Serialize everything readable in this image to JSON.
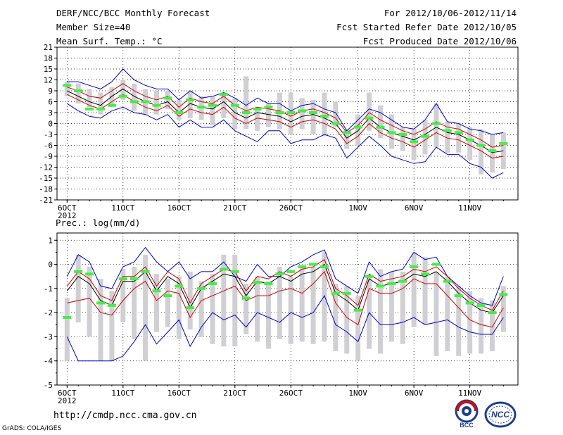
{
  "header": {
    "line1": "DERF/NCC/BCC Monthly Forecast",
    "line2": "Member Size=40",
    "line3": "Mean Surf. Temp.: °C",
    "right1": "For 2012/10/06-2012/11/14",
    "right2": "Fcst Started Refer Date 2012/10/05",
    "right3": "Fcst Produced Date 2012/10/06"
  },
  "footer": {
    "url": "http://cmdp.ncc.cma.gov.cn",
    "grads": "GrADS: COLA/IGES",
    "logo_bcc_text": "BCC",
    "logo_ncc_text": "NCC"
  },
  "colors": {
    "mean": "#000000",
    "spread": "#cc0000",
    "envelope": "#0000cc",
    "box": "#d0d0d4",
    "obs": "#44ee44",
    "grid": "#000000"
  },
  "chart_data": [
    {
      "type": "ensemble_timeseries",
      "title": "Mean Surf. Temp.: °C",
      "xlabel": "",
      "ylabel": "",
      "ylim": [
        -21,
        21
      ],
      "yticks": [
        "21",
        "18",
        "15",
        "12",
        "9",
        "6",
        "3",
        "0",
        "-3",
        "-6",
        "-9",
        "-12",
        "-15",
        "-18",
        "-21"
      ],
      "xticks": [
        {
          "day": 1,
          "label": "6OCT",
          "sub": "2012"
        },
        {
          "day": 6,
          "label": "11OCT"
        },
        {
          "day": 11,
          "label": "16OCT"
        },
        {
          "day": 16,
          "label": "21OCT"
        },
        {
          "day": 21,
          "label": "26OCT"
        },
        {
          "day": 27,
          "label": "1NOV"
        },
        {
          "day": 32,
          "label": "6NOV"
        },
        {
          "day": 37,
          "label": "11NOV"
        }
      ],
      "days": [
        1,
        2,
        3,
        4,
        5,
        6,
        7,
        8,
        9,
        10,
        11,
        12,
        13,
        14,
        15,
        16,
        17,
        18,
        19,
        20,
        21,
        22,
        23,
        24,
        25,
        26,
        27,
        28,
        29,
        30,
        31,
        32,
        33,
        34,
        35,
        36,
        37,
        38,
        39,
        40
      ],
      "mean": [
        9,
        7.5,
        6,
        5,
        7.5,
        9.5,
        7.5,
        6,
        5,
        6,
        3,
        5.5,
        4.5,
        4,
        6,
        3,
        1.5,
        3,
        2.5,
        2,
        0.5,
        2,
        2.5,
        1.5,
        0,
        -4,
        -2,
        1.5,
        -1,
        -2.5,
        -3.5,
        -4.5,
        -3,
        -1,
        -2.5,
        -3,
        -4.5,
        -6,
        -8,
        -7.5
      ],
      "upper": [
        10,
        9,
        7.5,
        7,
        9,
        11,
        9,
        7.5,
        6.5,
        7.5,
        4.5,
        7,
        6,
        5.5,
        7.5,
        5,
        3.5,
        4.5,
        4,
        3.5,
        2,
        3.5,
        4,
        3,
        1.5,
        -2.5,
        -0.5,
        3,
        1,
        -0.5,
        -2,
        -3,
        -1.5,
        0.5,
        -1,
        -1.5,
        -3,
        -4.5,
        -6.5,
        -6
      ],
      "lower": [
        8,
        6.5,
        5,
        4,
        6,
        8,
        6,
        4.5,
        3.5,
        5,
        2,
        4,
        3,
        2.5,
        4.5,
        1.5,
        0,
        1.5,
        1,
        0.5,
        -1,
        0.5,
        1,
        0,
        -1.5,
        -5.5,
        -3.5,
        0,
        -2.5,
        -4,
        -5,
        -6.5,
        -4.5,
        -2.5,
        -4,
        -4.5,
        -6,
        -7.5,
        -9.5,
        -9
      ],
      "max": [
        11.5,
        11.5,
        10.5,
        9.5,
        11.5,
        15,
        12,
        10.5,
        9.5,
        9.5,
        6.5,
        9,
        7,
        7.5,
        8.5,
        7,
        5,
        7,
        5.5,
        5.5,
        3.5,
        5,
        5.5,
        4,
        3,
        -2,
        1,
        4,
        3,
        1,
        -1,
        -1.5,
        1,
        5.5,
        0.5,
        0,
        -1.5,
        -2,
        -3,
        -2.5
      ],
      "min": [
        5.5,
        3.5,
        2,
        1.5,
        3.5,
        4.5,
        3,
        2.5,
        1,
        2.5,
        -1,
        1,
        -1,
        -1,
        1,
        -2,
        -3.5,
        -5,
        -2,
        -2,
        -5.5,
        -4.5,
        -4.5,
        -3,
        -4,
        -9.5,
        -6.5,
        -3.5,
        -6,
        -9,
        -10,
        -11,
        -10.5,
        -6.5,
        -8.5,
        -8.5,
        -11,
        -12,
        -15,
        -13.5
      ],
      "box_high": [
        11.5,
        11,
        9.5,
        8.5,
        10,
        12,
        11,
        9.5,
        9,
        9,
        6.5,
        9,
        7.5,
        7.5,
        8.5,
        7,
        13,
        4.5,
        5.5,
        8.5,
        8.5,
        7,
        6.5,
        8.5,
        6,
        -1.5,
        2.5,
        8.5,
        5,
        2.5,
        -1,
        -1.5,
        1,
        5.5,
        0.5,
        0,
        -1,
        -1.5,
        -3,
        -2.5
      ],
      "box_low": [
        7.5,
        5.5,
        4.5,
        2.5,
        4.5,
        6.5,
        3.5,
        2.5,
        2.5,
        4,
        1,
        1.5,
        1,
        -0.5,
        1.5,
        -1.5,
        -1.5,
        -2,
        -1,
        -1.5,
        -3,
        -1.5,
        -3,
        -3.5,
        -1,
        -7,
        -6,
        -2,
        -4,
        -7,
        -7.5,
        -10,
        -8.5,
        -6.5,
        -8,
        -8,
        -10,
        -14,
        -13.5,
        -12.5
      ],
      "obs": [
        10.5,
        9,
        4,
        4,
        5,
        7.5,
        6,
        6,
        5,
        7,
        3,
        6.5,
        4.5,
        5,
        8,
        5,
        3,
        4,
        4.5,
        3,
        3,
        3.5,
        3,
        2,
        0,
        -2.5,
        -1,
        1.5,
        -1,
        -2.5,
        -3,
        -5,
        -3.5,
        0,
        -2,
        -2.5,
        -4.5,
        -6,
        -7.5,
        -5.5
      ]
    },
    {
      "type": "ensemble_timeseries",
      "title": "Prec.: log(mm/d)",
      "xlabel": "",
      "ylabel": "",
      "ylim": [
        -5,
        1.3
      ],
      "yticks": [
        "1",
        "0",
        "-1",
        "-2",
        "-3",
        "-4",
        "-5"
      ],
      "xticks": [
        {
          "day": 1,
          "label": "6OCT",
          "sub": "2012"
        },
        {
          "day": 6,
          "label": "11OCT"
        },
        {
          "day": 11,
          "label": "16OCT"
        },
        {
          "day": 16,
          "label": "21OCT"
        },
        {
          "day": 21,
          "label": "26OCT"
        },
        {
          "day": 27,
          "label": "1NOV"
        },
        {
          "day": 32,
          "label": "6NOV"
        },
        {
          "day": 37,
          "label": "11NOV"
        }
      ],
      "days": [
        1,
        2,
        3,
        4,
        5,
        6,
        7,
        8,
        9,
        10,
        11,
        12,
        13,
        14,
        15,
        16,
        17,
        18,
        19,
        20,
        21,
        22,
        23,
        24,
        25,
        26,
        27,
        28,
        29,
        30,
        31,
        32,
        33,
        34,
        35,
        36,
        37,
        38,
        39,
        40
      ],
      "mean": [
        -1.1,
        -0.5,
        -0.8,
        -1.5,
        -1.7,
        -0.7,
        -0.7,
        -0.3,
        -1.1,
        -0.5,
        -0.8,
        -1.8,
        -1,
        -0.7,
        -0.4,
        -0.5,
        -1.3,
        -0.7,
        -0.8,
        -0.5,
        -0.7,
        -0.4,
        -0.3,
        0,
        -1.2,
        -1.5,
        -1.9,
        -0.6,
        -0.9,
        -0.8,
        -0.7,
        -0.4,
        -0.5,
        -0.3,
        -0.7,
        -1.2,
        -1.6,
        -1.9,
        -2,
        -1.3
      ],
      "upper": [
        -0.9,
        -0.3,
        -0.6,
        -1.3,
        -1.5,
        -0.5,
        -0.5,
        -0.1,
        -0.9,
        -0.3,
        -0.6,
        -1.6,
        -0.8,
        -0.5,
        -0.2,
        -0.3,
        -1.1,
        -0.5,
        -0.6,
        -0.3,
        -0.5,
        -0.2,
        -0.1,
        0.2,
        -1,
        -1.3,
        -1.7,
        -0.4,
        -0.7,
        -0.6,
        -0.5,
        -0.2,
        -0.3,
        -0.1,
        -0.5,
        -1,
        -1.4,
        -1.7,
        -1.9,
        -1.1
      ],
      "lower": [
        -1.6,
        -1.5,
        -1.4,
        -2,
        -2.1,
        -1.5,
        -1,
        -0.7,
        -1.5,
        -1.1,
        -1.2,
        -2.2,
        -1.5,
        -1.3,
        -1.1,
        -0.9,
        -1.5,
        -1.3,
        -1.3,
        -1.1,
        -1,
        -1.2,
        -0.8,
        -0.3,
        -1.6,
        -2.2,
        -2.5,
        -1,
        -1.2,
        -1.2,
        -1,
        -0.6,
        -0.8,
        -0.8,
        -1.3,
        -1.8,
        -2.3,
        -2.5,
        -2.6,
        -1.8
      ],
      "max": [
        -0.5,
        0.4,
        0.1,
        -0.9,
        -1,
        -0.1,
        0.1,
        0.7,
        0.1,
        -0.3,
        0.1,
        -0.6,
        -0.3,
        -0.3,
        0.1,
        -0.5,
        -0.7,
        0,
        -0.5,
        -0.5,
        -0.1,
        0.1,
        0.4,
        0.6,
        -0.6,
        -0.9,
        -1.2,
        0.1,
        -0.5,
        -0.3,
        -0.2,
        0.5,
        0.2,
        0.3,
        -0.5,
        -0.9,
        -1.3,
        -1.6,
        -1.7,
        -0.5
      ],
      "min": [
        -3,
        -4,
        -4,
        -4,
        -4,
        -3.8,
        -3.2,
        -2.5,
        -3.3,
        -2.8,
        -2.3,
        -3.4,
        -2.6,
        -2,
        -2.3,
        -2.1,
        -2.6,
        -2,
        -2.2,
        -2.4,
        -2,
        -2.2,
        -2,
        -1.3,
        -2.5,
        -2.8,
        -3.2,
        -2,
        -2.5,
        -2.5,
        -2.4,
        -2.2,
        -2.5,
        -2.4,
        -2.3,
        -2.6,
        -2.8,
        -2.9,
        -2.9,
        -2.2
      ],
      "box_high": [
        -1.4,
        0.4,
        -0.1,
        -0.6,
        -1.1,
        -0.2,
        -0.1,
        0.4,
        -0.4,
        -0.6,
        -0.5,
        -0.3,
        -0.7,
        -0.4,
        0.4,
        0.4,
        -0.8,
        -0.5,
        -0.7,
        -0.1,
        -0.5,
        -0.1,
        -0.1,
        0.5,
        -0.8,
        -0.9,
        -1.3,
        -0.5,
        -0.2,
        -0.3,
        -0.3,
        0.5,
        0.3,
        -0.3,
        -0.5,
        -0.9,
        -1.1,
        -1.4,
        -1.5,
        -0.9
      ],
      "box_low": [
        -4,
        -2.4,
        -3,
        -4,
        -4,
        -2.4,
        -3.1,
        -4,
        -2.8,
        -2.6,
        -3.1,
        -2.7,
        -3,
        -3.3,
        -3.4,
        -3.4,
        -2.9,
        -3.2,
        -3.5,
        -3.1,
        -3.3,
        -3.2,
        -3.3,
        -3.2,
        -3.6,
        -3.7,
        -4,
        -3.5,
        -3.7,
        -3.2,
        -3.3,
        -2.6,
        -2.5,
        -3.8,
        -3.6,
        -3.8,
        -3.7,
        -3.7,
        -3.6,
        -2.8
      ],
      "obs": [
        -2.2,
        -0.3,
        -0.4,
        -1.6,
        -1.7,
        -0.6,
        -0.6,
        -0.3,
        -1.1,
        -1.3,
        -0.9,
        -1.8,
        -1,
        -0.8,
        -0.2,
        -0.3,
        -1.4,
        -0.75,
        -0.8,
        -0.4,
        -0.3,
        -0.1,
        0,
        -0.1,
        -1.2,
        -1.2,
        -1.9,
        -0.5,
        -0.9,
        -0.8,
        -0.7,
        -0.1,
        -0.4,
        0,
        -0.7,
        -1.3,
        -1.6,
        -1.7,
        -2,
        -1.25
      ]
    }
  ]
}
